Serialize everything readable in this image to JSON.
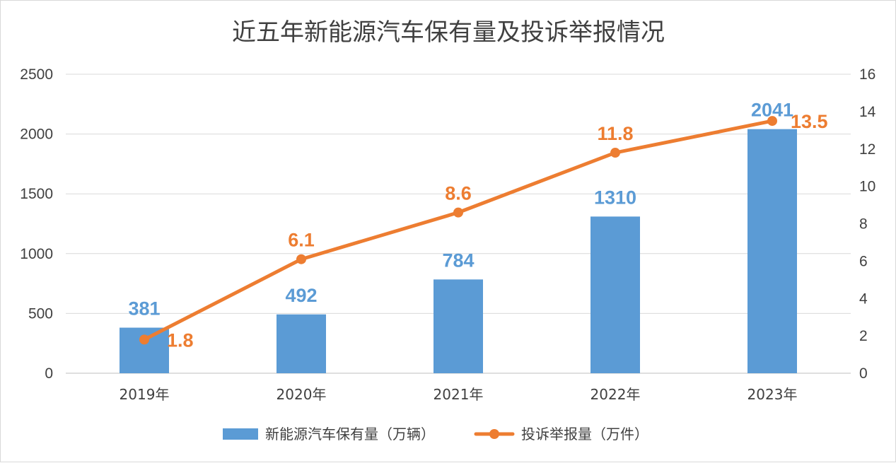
{
  "chart_data": {
    "type": "bar",
    "title": "近五年新能源汽车保有量及投诉举报情况",
    "categories": [
      "2019年",
      "2020年",
      "2021年",
      "2022年",
      "2023年"
    ],
    "series": [
      {
        "name": "新能源汽车保有量（万辆）",
        "type": "bar",
        "axis": "left",
        "color": "#5b9bd5",
        "values": [
          381,
          492,
          784,
          1310,
          2041
        ]
      },
      {
        "name": "投诉举报量（万件）",
        "type": "line",
        "axis": "right",
        "color": "#ed7d31",
        "values": [
          1.8,
          6.1,
          8.6,
          11.8,
          13.5
        ]
      }
    ],
    "y_left": {
      "min": 0,
      "max": 2500,
      "ticks": [
        0,
        500,
        1000,
        1500,
        2000,
        2500
      ]
    },
    "y_right": {
      "min": 0,
      "max": 16,
      "ticks": [
        0,
        2,
        4,
        6,
        8,
        10,
        12,
        14,
        16
      ]
    },
    "grid": true,
    "legend_position": "bottom"
  }
}
